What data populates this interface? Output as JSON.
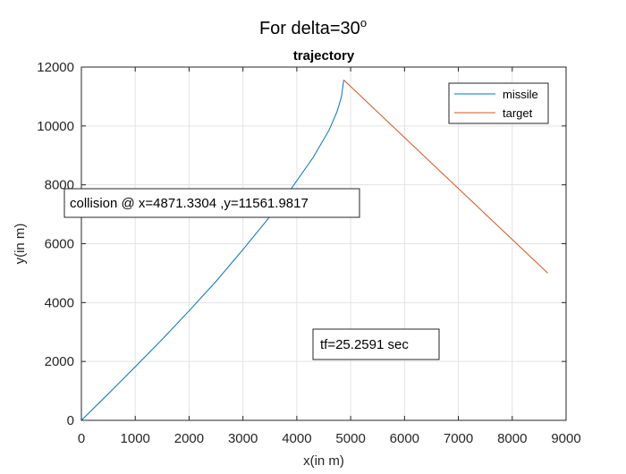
{
  "figure": {
    "suptitle_main": "For delta=30",
    "suptitle_sup": "o"
  },
  "chart_data": {
    "type": "line",
    "title": "trajectory",
    "xlabel": "x(in m)",
    "ylabel": "y(in m)",
    "xlim": [
      0,
      9000
    ],
    "ylim": [
      0,
      12000
    ],
    "xticks": [
      0,
      1000,
      2000,
      3000,
      4000,
      5000,
      6000,
      7000,
      8000,
      9000
    ],
    "yticks": [
      0,
      2000,
      4000,
      6000,
      8000,
      10000,
      12000
    ],
    "grid": true,
    "legend_position": "top-right",
    "series": [
      {
        "name": "missile",
        "color": "#0072bd",
        "x": [
          0,
          500,
          1000,
          1500,
          2000,
          2500,
          3000,
          3500,
          3900,
          4300,
          4600,
          4750,
          4830,
          4871.3
        ],
        "y": [
          0,
          900,
          1820,
          2750,
          3720,
          4720,
          5800,
          6920,
          7880,
          8920,
          9860,
          10500,
          11000,
          11562
        ]
      },
      {
        "name": "target",
        "color": "#d95319",
        "x": [
          4871.3,
          8660
        ],
        "y": [
          11562,
          5000
        ]
      }
    ],
    "annotations": [
      {
        "text": "collision @ x=4871.3304 ,y=11561.9817"
      },
      {
        "text": "tf=25.2591 sec"
      }
    ]
  }
}
